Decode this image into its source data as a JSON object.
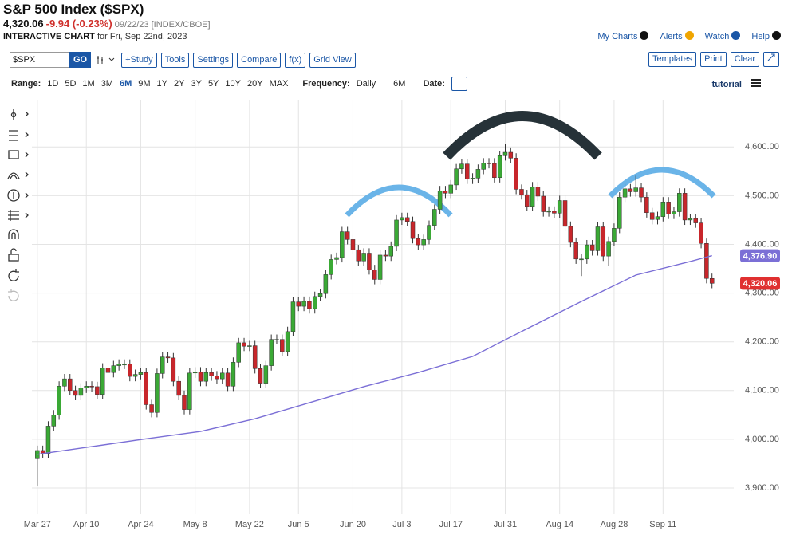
{
  "header": {
    "title": "S&P 500 Index ($SPX)",
    "last": "4,320.06",
    "change": "-9.94 (-0.23%)",
    "date_exchange": "09/22/23 [INDEX/CBOE]",
    "chart_label": "INTERACTIVE CHART",
    "chart_date": "for Fri, Sep 22nd, 2023",
    "links": [
      "My Charts",
      "Alerts",
      "Watch",
      "Help"
    ]
  },
  "toolbar": {
    "symbol": "$SPX",
    "go": "GO",
    "buttons": [
      "+Study",
      "Tools",
      "Settings",
      "Compare",
      "f(x)",
      "Grid View"
    ],
    "right_buttons": [
      "Templates",
      "Print",
      "Clear"
    ]
  },
  "range_bar": {
    "range_label": "Range:",
    "ranges": [
      "1D",
      "5D",
      "1M",
      "3M",
      "6M",
      "9M",
      "1Y",
      "2Y",
      "3Y",
      "5Y",
      "10Y",
      "20Y",
      "MAX"
    ],
    "selected_index": 4,
    "frequency_label": "Frequency:",
    "frequency": "Daily",
    "period": "6M",
    "date_label": "Date:",
    "tutorial": "tutorial"
  },
  "chart_data": {
    "type": "candlestick",
    "up_color": "#3aa935",
    "down_color": "#c8262b",
    "ylim": [
      3846,
      4697
    ],
    "yticks": [
      {
        "value": 3900,
        "label": "3,900.00"
      },
      {
        "value": 4000,
        "label": "4,000.00"
      },
      {
        "value": 4100,
        "label": "4,100.00"
      },
      {
        "value": 4200,
        "label": "4,200.00"
      },
      {
        "value": 4300,
        "label": "4,300.00"
      },
      {
        "value": 4400,
        "label": "4,400.00"
      },
      {
        "value": 4500,
        "label": "4,500.00"
      },
      {
        "value": 4600,
        "label": "4,600.00"
      }
    ],
    "xlim": [
      -1,
      128
    ],
    "xticks": [
      {
        "value": 0,
        "label": "Mar 27"
      },
      {
        "value": 9,
        "label": "Apr 10"
      },
      {
        "value": 19,
        "label": "Apr 24"
      },
      {
        "value": 29,
        "label": "May 8"
      },
      {
        "value": 39,
        "label": "May 22"
      },
      {
        "value": 48,
        "label": "Jun 5"
      },
      {
        "value": 58,
        "label": "Jun 20"
      },
      {
        "value": 67,
        "label": "Jul 3"
      },
      {
        "value": 76,
        "label": "Jul 17"
      },
      {
        "value": 86,
        "label": "Jul 31"
      },
      {
        "value": 96,
        "label": "Aug 14"
      },
      {
        "value": 106,
        "label": "Aug 28"
      },
      {
        "value": 115,
        "label": "Sep 11"
      }
    ],
    "grid": true,
    "candles": {
      "open": [
        3960,
        3977,
        3971,
        4027,
        4050,
        4109,
        4124,
        4100,
        4090,
        4105,
        4109,
        4108,
        4092,
        4146,
        4137,
        4151,
        4154,
        4154,
        4129,
        4133,
        4137,
        4071,
        4055,
        4135,
        4169,
        4167,
        4119,
        4090,
        4061,
        4136,
        4138,
        4119,
        4137,
        4130,
        4124,
        4136,
        4109,
        4158,
        4198,
        4191,
        4192,
        4145,
        4115,
        4151,
        4205,
        4205,
        4180,
        4221,
        4282,
        4273,
        4283,
        4268,
        4293,
        4299,
        4338,
        4369,
        4373,
        4426,
        4410,
        4389,
        4366,
        4382,
        4348,
        4328,
        4378,
        4376,
        4396,
        4450,
        4455,
        4447,
        4412,
        4399,
        4410,
        4439,
        4472,
        4510,
        4505,
        4522,
        4555,
        4565,
        4534,
        4536,
        4554,
        4567,
        4566,
        4537,
        4582,
        4589,
        4577,
        4513,
        4502,
        4478,
        4518,
        4499,
        4467,
        4468,
        4464,
        4490,
        4437,
        4404,
        4370,
        4370,
        4399,
        4387,
        4436,
        4376,
        4406,
        4433,
        4497,
        4514,
        4508,
        4516,
        4497,
        4465,
        4451,
        4457,
        4487,
        4462,
        4467,
        4505,
        4450,
        4453,
        4444,
        4402,
        4330
      ],
      "high": [
        3987,
        3987,
        4037,
        4060,
        4119,
        4134,
        4134,
        4110,
        4115,
        4119,
        4119,
        4118,
        4156,
        4156,
        4161,
        4164,
        4164,
        4164,
        4143,
        4147,
        4147,
        4081,
        4145,
        4179,
        4179,
        4177,
        4129,
        4100,
        4146,
        4148,
        4148,
        4147,
        4147,
        4140,
        4146,
        4146,
        4168,
        4208,
        4208,
        4202,
        4202,
        4155,
        4161,
        4215,
        4215,
        4215,
        4231,
        4292,
        4292,
        4293,
        4293,
        4303,
        4309,
        4348,
        4379,
        4383,
        4436,
        4436,
        4420,
        4399,
        4392,
        4392,
        4358,
        4388,
        4388,
        4406,
        4460,
        4465,
        4465,
        4457,
        4422,
        4420,
        4449,
        4482,
        4520,
        4520,
        4532,
        4565,
        4575,
        4575,
        4546,
        4564,
        4577,
        4577,
        4577,
        4592,
        4607,
        4599,
        4587,
        4523,
        4512,
        4528,
        4528,
        4509,
        4478,
        4478,
        4500,
        4500,
        4447,
        4414,
        4380,
        4409,
        4409,
        4446,
        4446,
        4416,
        4443,
        4507,
        4524,
        4524,
        4541,
        4526,
        4507,
        4475,
        4467,
        4497,
        4497,
        4477,
        4515,
        4515,
        4463,
        4463,
        4454,
        4412,
        4340
      ],
      "low": [
        3905,
        3961,
        3961,
        4017,
        4040,
        4099,
        4090,
        4080,
        4080,
        4095,
        4098,
        4082,
        4082,
        4127,
        4127,
        4141,
        4144,
        4119,
        4119,
        4123,
        4061,
        4045,
        4045,
        4125,
        4157,
        4109,
        4080,
        4051,
        4051,
        4126,
        4109,
        4109,
        4120,
        4114,
        4114,
        4099,
        4099,
        4148,
        4181,
        4181,
        4135,
        4105,
        4105,
        4141,
        4195,
        4170,
        4170,
        4211,
        4263,
        4263,
        4258,
        4258,
        4283,
        4289,
        4328,
        4359,
        4363,
        4400,
        4379,
        4356,
        4356,
        4338,
        4318,
        4318,
        4366,
        4366,
        4386,
        4440,
        4437,
        4402,
        4389,
        4389,
        4400,
        4429,
        4462,
        4495,
        4495,
        4512,
        4545,
        4524,
        4524,
        4526,
        4544,
        4556,
        4527,
        4527,
        4572,
        4567,
        4503,
        4492,
        4468,
        4468,
        4489,
        4457,
        4457,
        4454,
        4454,
        4427,
        4394,
        4360,
        4335,
        4360,
        4377,
        4377,
        4366,
        4356,
        4396,
        4423,
        4487,
        4498,
        4498,
        4487,
        4455,
        4441,
        4441,
        4447,
        4452,
        4452,
        4457,
        4440,
        4440,
        4434,
        4392,
        4320,
        4310
      ],
      "close": [
        3977,
        3971,
        4027,
        4050,
        4109,
        4124,
        4100,
        4090,
        4105,
        4109,
        4108,
        4092,
        4146,
        4137,
        4151,
        4154,
        4154,
        4129,
        4133,
        4137,
        4071,
        4055,
        4135,
        4169,
        4167,
        4119,
        4090,
        4061,
        4136,
        4138,
        4119,
        4137,
        4130,
        4124,
        4136,
        4109,
        4158,
        4198,
        4191,
        4192,
        4145,
        4115,
        4151,
        4205,
        4205,
        4180,
        4221,
        4282,
        4273,
        4283,
        4268,
        4293,
        4299,
        4338,
        4369,
        4373,
        4426,
        4410,
        4389,
        4366,
        4382,
        4348,
        4328,
        4378,
        4376,
        4396,
        4450,
        4455,
        4447,
        4412,
        4399,
        4410,
        4439,
        4472,
        4510,
        4505,
        4522,
        4555,
        4565,
        4534,
        4536,
        4554,
        4567,
        4566,
        4537,
        4582,
        4589,
        4577,
        4513,
        4502,
        4478,
        4518,
        4499,
        4467,
        4468,
        4464,
        4490,
        4437,
        4404,
        4370,
        4370,
        4399,
        4387,
        4436,
        4376,
        4406,
        4433,
        4497,
        4514,
        4508,
        4516,
        4497,
        4465,
        4451,
        4457,
        4487,
        4462,
        4467,
        4505,
        4450,
        4453,
        4444,
        4402,
        4330,
        4320.06
      ]
    },
    "moving_average": {
      "color": "#7b6fd6",
      "x": [
        0,
        10,
        20,
        30,
        40,
        50,
        60,
        70,
        80,
        90,
        100,
        110,
        120,
        124
      ],
      "values": [
        3969,
        3985,
        4001,
        4016,
        4042,
        4075,
        4108,
        4137,
        4170,
        4227,
        4283,
        4337,
        4365,
        4376.9
      ]
    },
    "last_labels": [
      {
        "value": 4376.9,
        "label": "4,376.90",
        "color": "#7b6fd6"
      },
      {
        "value": 4320.06,
        "label": "4,320.06",
        "color": "#e03030"
      }
    ]
  }
}
